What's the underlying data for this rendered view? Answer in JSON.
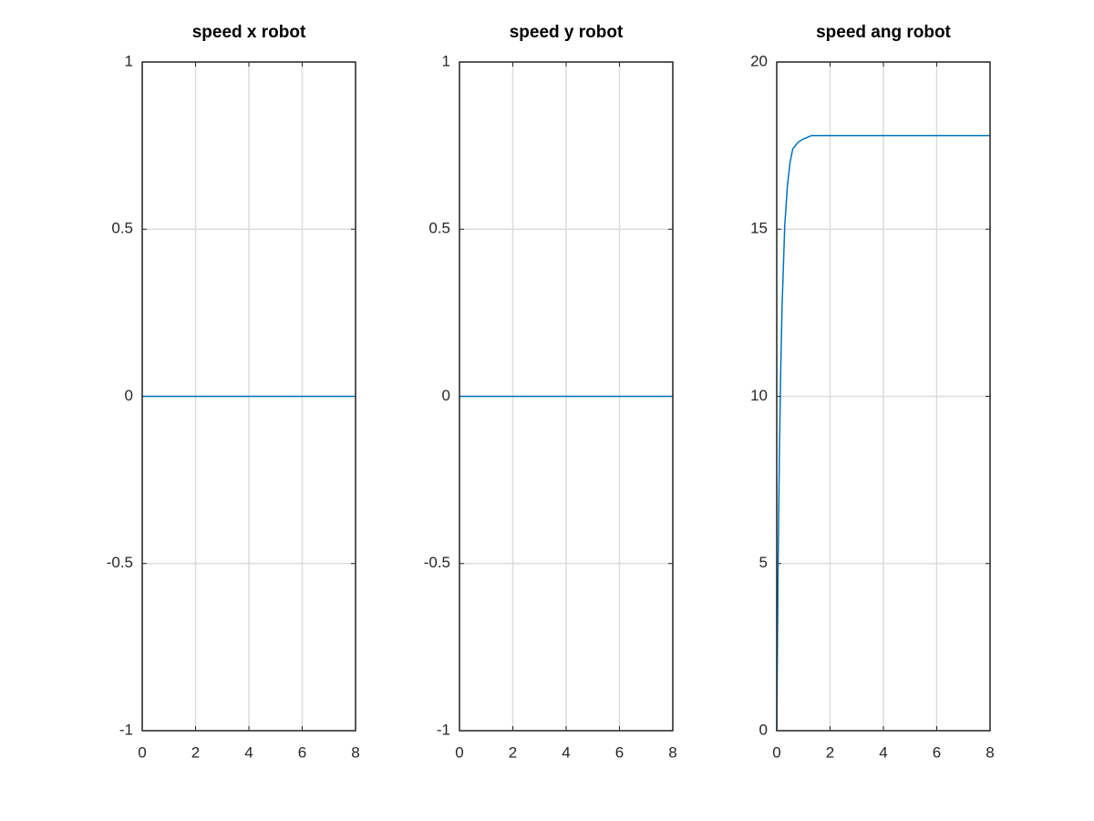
{
  "chart_data": [
    {
      "type": "line",
      "title": "speed x robot",
      "x": [
        0,
        8
      ],
      "series": [
        {
          "color": "#0072bd",
          "values": [
            0,
            0
          ]
        }
      ],
      "xlim": [
        0,
        8
      ],
      "xticks": [
        0,
        2,
        4,
        6,
        8
      ],
      "ylim": [
        -1,
        1
      ],
      "yticks": [
        -1,
        -0.5,
        0,
        0.5,
        1
      ],
      "grid": true
    },
    {
      "type": "line",
      "title": "speed y robot",
      "x": [
        0,
        8
      ],
      "series": [
        {
          "color": "#0072bd",
          "values": [
            0,
            0
          ]
        }
      ],
      "xlim": [
        0,
        8
      ],
      "xticks": [
        0,
        2,
        4,
        6,
        8
      ],
      "ylim": [
        -1,
        1
      ],
      "yticks": [
        -1,
        -0.5,
        0,
        0.5,
        1
      ],
      "grid": true
    },
    {
      "type": "line",
      "title": "speed ang robot",
      "x": [
        0,
        0.05,
        0.1,
        0.15,
        0.2,
        0.3,
        0.4,
        0.5,
        0.6,
        0.8,
        1.0,
        1.3,
        1.6,
        2,
        8
      ],
      "series": [
        {
          "color": "#0072bd",
          "values": [
            0,
            4.8,
            8.3,
            10.8,
            12.7,
            15.1,
            16.3,
            17.0,
            17.4,
            17.6,
            17.7,
            17.8,
            17.8,
            17.8,
            17.8
          ]
        }
      ],
      "xlim": [
        0,
        8
      ],
      "xticks": [
        0,
        2,
        4,
        6,
        8
      ],
      "ylim": [
        0,
        20
      ],
      "yticks": [
        0,
        5,
        10,
        15,
        20
      ],
      "grid": true
    }
  ]
}
